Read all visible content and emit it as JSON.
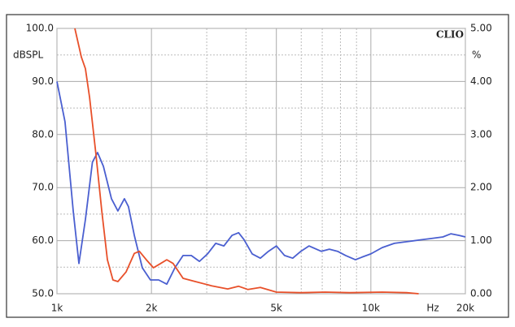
{
  "chart_data": {
    "type": "line",
    "xscale": "log",
    "grid": true,
    "brand": "CLIO",
    "ylabel": "dBSPL",
    "y2label": "%",
    "xlabel": "Hz",
    "xlim": [
      1000,
      20000
    ],
    "xticks": [
      {
        "value": 1000,
        "label": "1k"
      },
      {
        "value": 2000,
        "label": "2k"
      },
      {
        "value": 5000,
        "label": "5k"
      },
      {
        "value": 10000,
        "label": "10k"
      },
      {
        "value": 20000,
        "label": "20k"
      }
    ],
    "xminorticks": [
      3000,
      4000,
      6000,
      7000,
      8000,
      9000
    ],
    "ylim": [
      50,
      100
    ],
    "yticks": [
      {
        "value": 50,
        "label": "50.0"
      },
      {
        "value": 60,
        "label": "60.0"
      },
      {
        "value": 70,
        "label": "70.0"
      },
      {
        "value": 80,
        "label": "80.0"
      },
      {
        "value": 90,
        "label": "90.0"
      },
      {
        "value": 100,
        "label": "100.0"
      }
    ],
    "yminorticks": [
      55,
      65,
      75,
      85,
      95
    ],
    "y2lim": [
      0,
      5
    ],
    "y2ticks": [
      {
        "value": 0,
        "label": "0.00"
      },
      {
        "value": 1,
        "label": "1.00"
      },
      {
        "value": 2,
        "label": "2.00"
      },
      {
        "value": 3,
        "label": "3.00"
      },
      {
        "value": 4,
        "label": "4.00"
      },
      {
        "value": 5,
        "label": "5.00"
      }
    ],
    "series": [
      {
        "color": "#4a5fd0",
        "x": [
          1000,
          1061,
          1127,
          1175,
          1232,
          1297,
          1347,
          1406,
          1492,
          1564,
          1640,
          1690,
          1764,
          1870,
          1985,
          2108,
          2238,
          2376,
          2522,
          2678,
          2843,
          3018,
          3204,
          3402,
          3611,
          3790,
          3944,
          4187,
          4446,
          4720,
          5000,
          5310,
          5636,
          5984,
          6353,
          6947,
          7375,
          7830,
          8312,
          8926,
          9365,
          10000,
          10870,
          11880,
          13000,
          14200,
          15520,
          16960,
          18000,
          19100,
          20000
        ],
        "values": [
          90,
          82.4,
          65.6,
          55.7,
          64,
          74.8,
          76.6,
          74,
          67.9,
          65.6,
          67.9,
          66.4,
          61,
          54.9,
          52.6,
          52.6,
          51.8,
          54.9,
          57.2,
          57.2,
          56.1,
          57.5,
          59.5,
          59,
          61,
          61.5,
          60.2,
          57.5,
          56.7,
          58,
          59,
          57.2,
          56.7,
          58,
          59,
          58,
          58.4,
          58,
          57.2,
          56.4,
          56.9,
          57.5,
          58.7,
          59.5,
          59.8,
          60.1,
          60.4,
          60.7,
          61.3,
          61,
          60.7
        ]
      },
      {
        "color": "#e8502a",
        "axis": "y2",
        "x": [
          1140,
          1196,
          1232,
          1270,
          1331,
          1389,
          1448,
          1508,
          1564,
          1660,
          1764,
          1830,
          1926,
          2030,
          2140,
          2238,
          2345,
          2522,
          2760,
          3110,
          3500,
          3790,
          4060,
          4446,
          5000,
          5984,
          7150,
          8560,
          10870,
          13000,
          14200
        ],
        "values": [
          5,
          4.46,
          4.24,
          3.7,
          2.63,
          1.56,
          0.64,
          0.26,
          0.23,
          0.41,
          0.76,
          0.8,
          0.64,
          0.49,
          0.57,
          0.64,
          0.57,
          0.29,
          0.23,
          0.15,
          0.09,
          0.14,
          0.08,
          0.12,
          0.03,
          0.02,
          0.03,
          0.02,
          0.03,
          0.02,
          0
        ]
      }
    ]
  }
}
